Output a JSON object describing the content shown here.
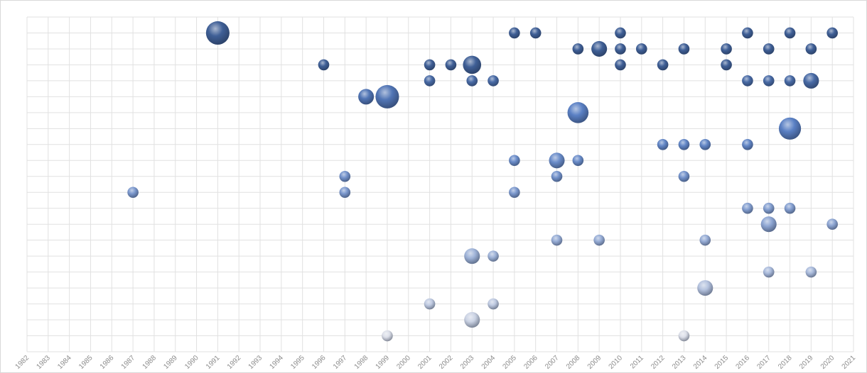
{
  "chart_data": {
    "type": "bubble",
    "title": "",
    "xlabel": "",
    "ylabel": "",
    "xlim": [
      1982,
      2021
    ],
    "ylim": [
      0,
      21
    ],
    "x_ticks": [
      1982,
      1983,
      1984,
      1985,
      1986,
      1987,
      1988,
      1989,
      1990,
      1991,
      1992,
      1993,
      1994,
      1995,
      1996,
      1997,
      1998,
      1999,
      2000,
      2001,
      2002,
      2003,
      2004,
      2005,
      2006,
      2007,
      2008,
      2009,
      2010,
      2011,
      2012,
      2013,
      2014,
      2015,
      2016,
      2017,
      2018,
      2019,
      2020,
      2021
    ],
    "y_tick_labels_shown": false,
    "grid": true,
    "legend": "none",
    "colors": {
      "high": "#3f5f96",
      "mid": "#5a80c4",
      "low": "#dcdfe9"
    },
    "points": [
      {
        "x": 1991,
        "y": 20,
        "size": 4.5
      },
      {
        "x": 2005,
        "y": 20,
        "size": 1
      },
      {
        "x": 2006,
        "y": 20,
        "size": 1
      },
      {
        "x": 2010,
        "y": 20,
        "size": 1
      },
      {
        "x": 2016,
        "y": 20,
        "size": 1
      },
      {
        "x": 2018,
        "y": 20,
        "size": 1
      },
      {
        "x": 2020,
        "y": 20,
        "size": 1
      },
      {
        "x": 2008,
        "y": 19,
        "size": 1
      },
      {
        "x": 2009,
        "y": 19,
        "size": 2
      },
      {
        "x": 2010,
        "y": 19,
        "size": 1
      },
      {
        "x": 2011,
        "y": 19,
        "size": 1
      },
      {
        "x": 2013,
        "y": 19,
        "size": 1
      },
      {
        "x": 2015,
        "y": 19,
        "size": 1
      },
      {
        "x": 2017,
        "y": 19,
        "size": 1
      },
      {
        "x": 2019,
        "y": 19,
        "size": 1
      },
      {
        "x": 1996,
        "y": 18,
        "size": 1
      },
      {
        "x": 2001,
        "y": 18,
        "size": 1
      },
      {
        "x": 2002,
        "y": 18,
        "size": 1
      },
      {
        "x": 2003,
        "y": 18,
        "size": 2.7
      },
      {
        "x": 2010,
        "y": 18,
        "size": 1
      },
      {
        "x": 2012,
        "y": 18,
        "size": 1
      },
      {
        "x": 2015,
        "y": 18,
        "size": 1
      },
      {
        "x": 2001,
        "y": 17,
        "size": 1
      },
      {
        "x": 2003,
        "y": 17,
        "size": 1
      },
      {
        "x": 2004,
        "y": 17,
        "size": 1
      },
      {
        "x": 2016,
        "y": 17,
        "size": 1
      },
      {
        "x": 2017,
        "y": 17,
        "size": 1
      },
      {
        "x": 2018,
        "y": 17,
        "size": 1
      },
      {
        "x": 2019,
        "y": 17,
        "size": 2
      },
      {
        "x": 1998,
        "y": 16,
        "size": 2
      },
      {
        "x": 1999,
        "y": 16,
        "size": 4.5
      },
      {
        "x": 2008,
        "y": 15,
        "size": 3.6
      },
      {
        "x": 2018,
        "y": 14,
        "size": 4
      },
      {
        "x": 2012,
        "y": 13,
        "size": 1
      },
      {
        "x": 2013,
        "y": 13,
        "size": 1
      },
      {
        "x": 2014,
        "y": 13,
        "size": 1
      },
      {
        "x": 2016,
        "y": 13,
        "size": 1
      },
      {
        "x": 2005,
        "y": 12,
        "size": 1
      },
      {
        "x": 2007,
        "y": 12,
        "size": 2
      },
      {
        "x": 2008,
        "y": 12,
        "size": 1
      },
      {
        "x": 1997,
        "y": 11,
        "size": 1
      },
      {
        "x": 2007,
        "y": 11,
        "size": 1
      },
      {
        "x": 2013,
        "y": 11,
        "size": 1
      },
      {
        "x": 1987,
        "y": 10,
        "size": 1
      },
      {
        "x": 1997,
        "y": 10,
        "size": 1
      },
      {
        "x": 2005,
        "y": 10,
        "size": 1
      },
      {
        "x": 2016,
        "y": 9,
        "size": 1
      },
      {
        "x": 2017,
        "y": 9,
        "size": 1
      },
      {
        "x": 2018,
        "y": 9,
        "size": 1
      },
      {
        "x": 2017,
        "y": 8,
        "size": 2
      },
      {
        "x": 2020,
        "y": 8,
        "size": 1
      },
      {
        "x": 2007,
        "y": 7,
        "size": 1
      },
      {
        "x": 2009,
        "y": 7,
        "size": 1
      },
      {
        "x": 2014,
        "y": 7,
        "size": 1
      },
      {
        "x": 2003,
        "y": 6,
        "size": 2
      },
      {
        "x": 2004,
        "y": 6,
        "size": 1
      },
      {
        "x": 2017,
        "y": 5,
        "size": 1
      },
      {
        "x": 2019,
        "y": 5,
        "size": 1
      },
      {
        "x": 2014,
        "y": 4,
        "size": 2
      },
      {
        "x": 2001,
        "y": 3,
        "size": 1
      },
      {
        "x": 2004,
        "y": 3,
        "size": 1
      },
      {
        "x": 2003,
        "y": 2,
        "size": 2
      },
      {
        "x": 1999,
        "y": 1,
        "size": 1
      },
      {
        "x": 2013,
        "y": 1,
        "size": 1
      }
    ]
  }
}
